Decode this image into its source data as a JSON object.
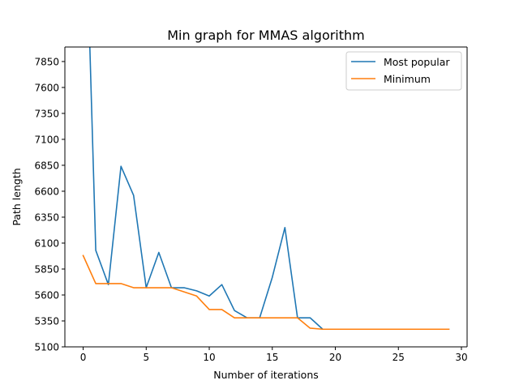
{
  "chart_data": {
    "type": "line",
    "title": "Min graph for MMAS algorithm",
    "xlabel": "Number of iterations",
    "ylabel": "Path length",
    "xlim": [
      -1.45,
      30.45
    ],
    "ylim": [
      5100,
      7990
    ],
    "xticks": [
      0,
      5,
      10,
      15,
      20,
      25,
      30
    ],
    "yticks": [
      5100,
      5350,
      5600,
      5850,
      6100,
      6350,
      6600,
      6850,
      7100,
      7350,
      7600,
      7850
    ],
    "grid": false,
    "legend_position": "top-right",
    "x": [
      0,
      1,
      2,
      3,
      4,
      5,
      6,
      7,
      8,
      9,
      10,
      11,
      12,
      13,
      14,
      15,
      16,
      17,
      18,
      19,
      20,
      21,
      22,
      23,
      24,
      25,
      26,
      27,
      28,
      29
    ],
    "series": [
      {
        "name": "Most popular",
        "color": "#1f77b4",
        "values": [
          10200,
          6030,
          5700,
          6840,
          6560,
          5670,
          6010,
          5670,
          5670,
          5640,
          5590,
          5700,
          5450,
          5380,
          5380,
          5770,
          6250,
          5380,
          5380,
          5270,
          5270,
          5270,
          5270,
          5270,
          5270,
          5270,
          5270,
          5270,
          5270,
          5270
        ]
      },
      {
        "name": "Minimum",
        "color": "#ff7f0e",
        "values": [
          5980,
          5710,
          5710,
          5710,
          5670,
          5670,
          5670,
          5670,
          5630,
          5590,
          5460,
          5460,
          5380,
          5380,
          5380,
          5380,
          5380,
          5380,
          5280,
          5270,
          5270,
          5270,
          5270,
          5270,
          5270,
          5270,
          5270,
          5270,
          5270,
          5270
        ]
      }
    ]
  }
}
